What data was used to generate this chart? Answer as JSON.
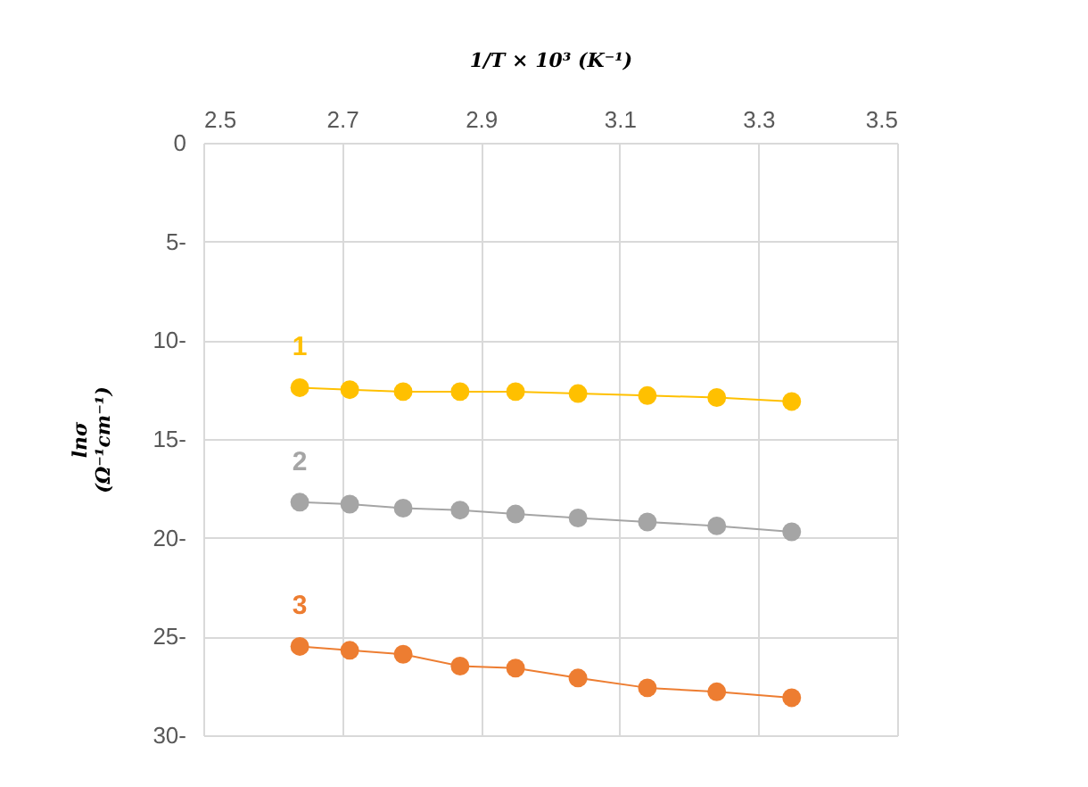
{
  "chart_data": {
    "type": "line",
    "xlabel": "1/T × 10³ (K⁻¹)",
    "ylabel": "lnσ\n(Ω⁻¹cm⁻¹)",
    "x": [
      2.639,
      2.711,
      2.788,
      2.87,
      2.95,
      3.04,
      3.14,
      3.24,
      3.348
    ],
    "series": [
      {
        "name": "1",
        "color": "#ffc000",
        "values": [
          -12.4,
          -12.5,
          -12.6,
          -12.6,
          -12.6,
          -12.7,
          -12.8,
          -12.9,
          -13.1
        ]
      },
      {
        "name": "2",
        "color": "#a5a5a5",
        "values": [
          -18.2,
          -18.3,
          -18.5,
          -18.6,
          -18.8,
          -19.0,
          -19.2,
          -19.4,
          -19.7
        ]
      },
      {
        "name": "3",
        "color": "#ed7d31",
        "values": [
          -25.5,
          -25.7,
          -25.9,
          -26.5,
          -26.6,
          -27.1,
          -27.6,
          -27.8,
          -28.1
        ]
      }
    ],
    "xlim": [
      2.5,
      3.5
    ],
    "xticks": [
      2.5,
      2.7,
      2.9,
      3.1,
      3.3,
      3.5
    ],
    "ylim": [
      -30,
      0
    ],
    "yticks": [
      0,
      {
        "value": -5,
        "label": "5-"
      },
      {
        "value": -10,
        "label": "10-"
      },
      {
        "value": -15,
        "label": "15-"
      },
      {
        "value": -20,
        "label": "20-"
      },
      {
        "value": -25,
        "label": "25-"
      },
      {
        "value": -30,
        "label": "30-"
      }
    ],
    "grid": true,
    "marker": "circle",
    "legend": false
  }
}
